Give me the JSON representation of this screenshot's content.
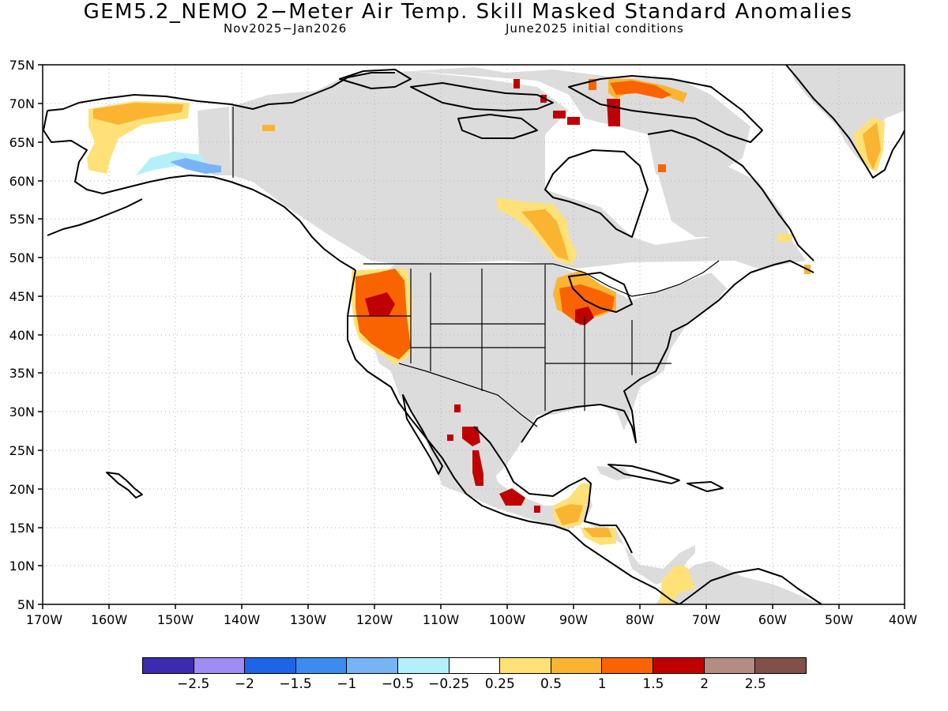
{
  "title": "GEM5.2_NEMO 2−Meter Air Temp. Skill Masked Standard Anomalies",
  "subtitle_left": "Nov2025−Jan2026",
  "subtitle_right": "June2025 initial conditions",
  "lat_labels": [
    "75N",
    "70N",
    "65N",
    "60N",
    "55N",
    "50N",
    "45N",
    "40N",
    "35N",
    "30N",
    "25N",
    "20N",
    "15N",
    "10N",
    "5N"
  ],
  "lon_labels": [
    "170W",
    "160W",
    "150W",
    "140W",
    "130W",
    "120W",
    "110W",
    "100W",
    "90W",
    "80W",
    "70W",
    "60W",
    "50W",
    "40W"
  ],
  "colorbar": {
    "colors": [
      "#3c2bb0",
      "#a08cf5",
      "#1e64e6",
      "#3c8cf0",
      "#78b4f5",
      "#b4f0fa",
      "#ffffff",
      "#ffe178",
      "#fab432",
      "#fa6400",
      "#c00000",
      "#b48c82",
      "#825046"
    ],
    "labels": [
      "−2.5",
      "−2",
      "−1.5",
      "−1",
      "−0.5",
      "−0.25",
      "0.25",
      "0.5",
      "1",
      "1.5",
      "2",
      "2.5"
    ]
  },
  "colors": {
    "masked_gray": "#dcdcdc",
    "coast": "#000000",
    "grid": "#b0b0b0"
  }
}
